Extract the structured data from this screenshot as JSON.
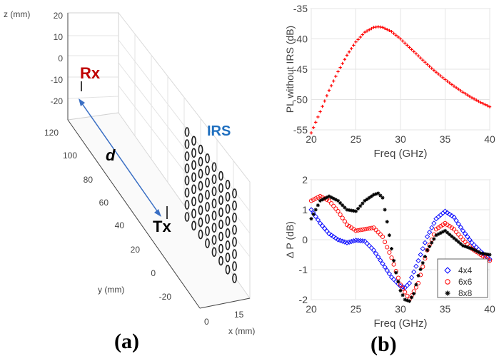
{
  "panel_a": {
    "caption": "(a)",
    "z_axis_label": "z (mm)",
    "y_axis_label": "y (mm)",
    "x_axis_label": "x (mm)",
    "z_ticks": [
      "20",
      "10",
      "0",
      "-10",
      "-20"
    ],
    "y_ticks": [
      "120",
      "100",
      "80",
      "60",
      "40",
      "20",
      "0",
      "-20"
    ],
    "x_ticks": [
      "0",
      "15"
    ],
    "rx_label": "Rx",
    "tx_label": "Tx",
    "d_label": "d",
    "irs_label": "IRS",
    "rx_color": "#c00000",
    "irs_color": "#1f6fbf",
    "arrow_color": "#3a6fc4"
  },
  "panel_b": {
    "caption": "(b)"
  },
  "chart_data": [
    {
      "type": "line",
      "title": "",
      "xlabel": "Freq (GHz)",
      "ylabel": "PL without IRS (dB)",
      "xlim": [
        20,
        40
      ],
      "ylim": [
        -55,
        -35
      ],
      "xticks": [
        "20",
        "25",
        "30",
        "35",
        "40"
      ],
      "yticks": [
        "-35",
        "-40",
        "-45",
        "-50",
        "-55"
      ],
      "grid": true,
      "series": [
        {
          "name": "PL without IRS",
          "marker": "*",
          "color": "#ff0000",
          "x": [
            20,
            21,
            22,
            23,
            24,
            25,
            26,
            27,
            27.5,
            28,
            29,
            30,
            31,
            32,
            33,
            34,
            35,
            36,
            37,
            38,
            39,
            40
          ],
          "y": [
            -55.5,
            -52.0,
            -48.5,
            -45.4,
            -42.7,
            -40.5,
            -38.9,
            -38.1,
            -38.0,
            -38.1,
            -38.8,
            -40.0,
            -41.4,
            -42.8,
            -44.2,
            -45.5,
            -46.7,
            -47.8,
            -48.8,
            -49.7,
            -50.5,
            -51.2
          ]
        }
      ]
    },
    {
      "type": "scatter",
      "title": "",
      "xlabel": "Freq (GHz)",
      "ylabel": "Δ P (dB)",
      "xlim": [
        20,
        40
      ],
      "ylim": [
        -2,
        2
      ],
      "xticks": [
        "20",
        "25",
        "30",
        "35",
        "40"
      ],
      "yticks": [
        "2",
        "1",
        "0",
        "-1",
        "-2"
      ],
      "grid": true,
      "legend": "bottom-right",
      "series": [
        {
          "name": "4x4",
          "marker": "diamond",
          "color": "#0000ff",
          "x": [
            20,
            21,
            22,
            23,
            24,
            25,
            26,
            27,
            28,
            29,
            30,
            30.5,
            31,
            32,
            33,
            34,
            35,
            36,
            37,
            38,
            39,
            40
          ],
          "y": [
            1.0,
            0.55,
            0.2,
            0.0,
            -0.1,
            -0.02,
            -0.05,
            -0.35,
            -0.8,
            -1.25,
            -1.55,
            -1.6,
            -1.45,
            -0.7,
            0.1,
            0.7,
            0.95,
            0.75,
            0.3,
            -0.1,
            -0.4,
            -0.65
          ]
        },
        {
          "name": "6x6",
          "marker": "circle",
          "color": "#ff0000",
          "x": [
            20,
            21,
            22,
            23,
            24,
            25,
            26,
            27,
            28,
            29,
            30,
            31,
            32,
            33,
            34,
            35,
            36,
            37,
            38,
            39,
            40
          ],
          "y": [
            1.3,
            1.45,
            1.3,
            0.95,
            0.5,
            0.3,
            0.35,
            0.4,
            0.1,
            -0.6,
            -1.5,
            -2.0,
            -1.45,
            -0.35,
            0.35,
            0.55,
            0.35,
            0.0,
            -0.3,
            -0.5,
            -0.7
          ]
        },
        {
          "name": "8x8",
          "marker": "star",
          "color": "#000000",
          "x": [
            20,
            21,
            22,
            23,
            24,
            25,
            26,
            27,
            27.5,
            28,
            28.5,
            29,
            29.5,
            30,
            30.5,
            31,
            31.5,
            32,
            33,
            34,
            35,
            36,
            37,
            38,
            39,
            40
          ],
          "y": [
            0.7,
            1.3,
            1.45,
            1.3,
            1.0,
            0.95,
            1.3,
            1.5,
            1.55,
            1.4,
            0.6,
            -0.3,
            -1.1,
            -1.7,
            -2.0,
            -2.05,
            -1.8,
            -1.2,
            -0.35,
            0.15,
            0.3,
            0.05,
            -0.2,
            -0.3,
            -0.45,
            -0.5
          ]
        }
      ]
    }
  ]
}
